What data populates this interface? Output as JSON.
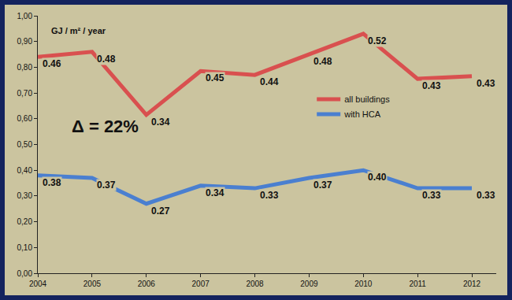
{
  "chart_data": {
    "type": "line",
    "ylabel": "GJ / m² / year",
    "categories": [
      "2004",
      "2005",
      "2006",
      "2007",
      "2008",
      "2009",
      "2010",
      "2011",
      "2012"
    ],
    "series": [
      {
        "name": "all buildings",
        "color": "#d9504f",
        "values": [
          0.84,
          0.86,
          0.615,
          0.785,
          0.77,
          0.85,
          0.93,
          0.755,
          0.765
        ]
      },
      {
        "name": "with HCA",
        "color": "#4a7fd0",
        "values": [
          0.38,
          0.37,
          0.27,
          0.34,
          0.33,
          0.37,
          0.4,
          0.33,
          0.33
        ],
        "value_labels": [
          "0.38",
          "0.37",
          "0.27",
          "0.34",
          "0.33",
          "0.37",
          "0.40",
          "0.33",
          "0.33"
        ]
      }
    ],
    "data_labels": true,
    "annotations": [
      {
        "text": "Δ = 22%"
      },
      {
        "text": "0.46",
        "series": "all buildings",
        "category": "2004"
      },
      {
        "text": "0.48",
        "series": "all buildings",
        "category": "2005"
      },
      {
        "text": "0.34",
        "series": "all buildings",
        "category": "2006"
      },
      {
        "text": "0.45",
        "series": "all buildings",
        "category": "2007"
      },
      {
        "text": "0.44",
        "series": "all buildings",
        "category": "2008"
      },
      {
        "text": "0.48",
        "series": "all buildings",
        "category": "2009"
      },
      {
        "text": "0.52",
        "series": "all buildings",
        "category": "2010"
      },
      {
        "text": "0.43",
        "series": "all buildings",
        "category": "2011"
      },
      {
        "text": "0.43",
        "series": "all buildings",
        "category": "2012"
      }
    ],
    "ylim": [
      0,
      1
    ],
    "yticks": [
      {
        "value": 0,
        "label": "0,00"
      },
      {
        "value": 0.1,
        "label": "0,10"
      },
      {
        "value": 0.2,
        "label": "0,20"
      },
      {
        "value": 0.3,
        "label": "0,30"
      },
      {
        "value": 0.4,
        "label": "0,40"
      },
      {
        "value": 0.5,
        "label": "0,50"
      },
      {
        "value": 0.6,
        "label": "0,60"
      },
      {
        "value": 0.7,
        "label": "0,70"
      },
      {
        "value": 0.8,
        "label": "0,80"
      },
      {
        "value": 0.9,
        "label": "0,90"
      },
      {
        "value": 1,
        "label": "1,00"
      }
    ],
    "grid": false,
    "legend": "right"
  }
}
